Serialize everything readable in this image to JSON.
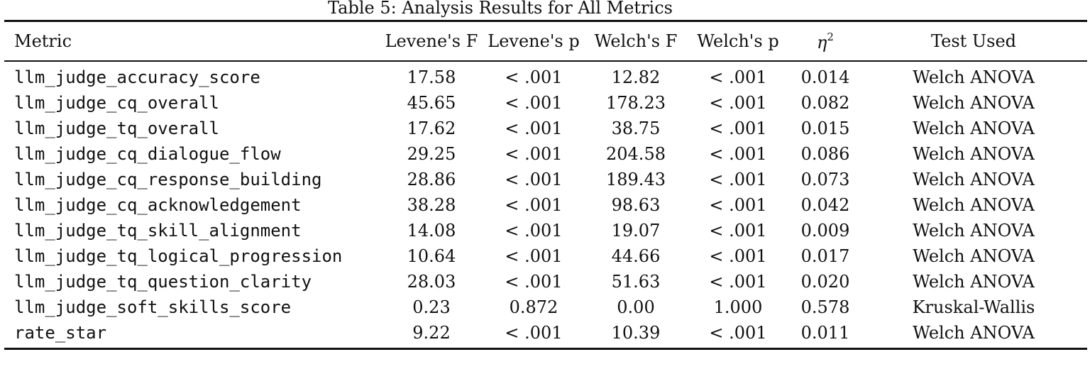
{
  "caption": "Table 5: Analysis Results for All Metrics",
  "columns": {
    "metric": "Metric",
    "levene_f": "Levene's F",
    "levene_p": "Levene's p",
    "welch_f": "Welch's F",
    "welch_p": "Welch's p",
    "eta_symbol": "η",
    "eta_exponent": "2",
    "test_used": "Test Used"
  },
  "rows": [
    {
      "metric": "llm_judge_accuracy_score",
      "levene_f": "17.58",
      "levene_p": "< .001",
      "welch_f": "12.82",
      "welch_p": "< .001",
      "eta_sq": "0.014",
      "test": "Welch ANOVA"
    },
    {
      "metric": "llm_judge_cq_overall",
      "levene_f": "45.65",
      "levene_p": "< .001",
      "welch_f": "178.23",
      "welch_p": "< .001",
      "eta_sq": "0.082",
      "test": "Welch ANOVA"
    },
    {
      "metric": "llm_judge_tq_overall",
      "levene_f": "17.62",
      "levene_p": "< .001",
      "welch_f": "38.75",
      "welch_p": "< .001",
      "eta_sq": "0.015",
      "test": "Welch ANOVA"
    },
    {
      "metric": "llm_judge_cq_dialogue_flow",
      "levene_f": "29.25",
      "levene_p": "< .001",
      "welch_f": "204.58",
      "welch_p": "< .001",
      "eta_sq": "0.086",
      "test": "Welch ANOVA"
    },
    {
      "metric": "llm_judge_cq_response_building",
      "levene_f": "28.86",
      "levene_p": "< .001",
      "welch_f": "189.43",
      "welch_p": "< .001",
      "eta_sq": "0.073",
      "test": "Welch ANOVA"
    },
    {
      "metric": "llm_judge_cq_acknowledgement",
      "levene_f": "38.28",
      "levene_p": "< .001",
      "welch_f": "98.63",
      "welch_p": "< .001",
      "eta_sq": "0.042",
      "test": "Welch ANOVA"
    },
    {
      "metric": "llm_judge_tq_skill_alignment",
      "levene_f": "14.08",
      "levene_p": "< .001",
      "welch_f": "19.07",
      "welch_p": "< .001",
      "eta_sq": "0.009",
      "test": "Welch ANOVA"
    },
    {
      "metric": "llm_judge_tq_logical_progression",
      "levene_f": "10.64",
      "levene_p": "< .001",
      "welch_f": "44.66",
      "welch_p": "< .001",
      "eta_sq": "0.017",
      "test": "Welch ANOVA"
    },
    {
      "metric": "llm_judge_tq_question_clarity",
      "levene_f": "28.03",
      "levene_p": "< .001",
      "welch_f": "51.63",
      "welch_p": "< .001",
      "eta_sq": "0.020",
      "test": "Welch ANOVA"
    },
    {
      "metric": "llm_judge_soft_skills_score",
      "levene_f": "0.23",
      "levene_p": "0.872",
      "welch_f": "0.00",
      "welch_p": "1.000",
      "eta_sq": "0.578",
      "test": "Kruskal-Wallis"
    },
    {
      "metric": "rate_star",
      "levene_f": "9.22",
      "levene_p": "< .001",
      "welch_f": "10.39",
      "welch_p": "< .001",
      "eta_sq": "0.011",
      "test": "Welch ANOVA"
    }
  ]
}
